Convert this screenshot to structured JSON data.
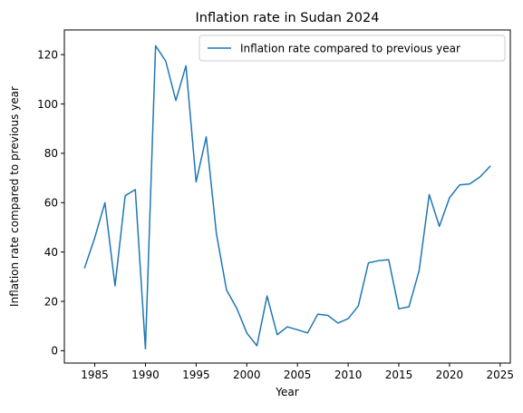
{
  "chart_data": {
    "type": "line",
    "title": "Inflation rate in Sudan 2024",
    "xlabel": "Year",
    "ylabel": "Inflation rate compared to previous year",
    "xlim": [
      1982.0,
      2026.0
    ],
    "ylim": [
      -5,
      130
    ],
    "xticks": [
      1985,
      1990,
      1995,
      2000,
      2005,
      2010,
      2015,
      2020,
      2025
    ],
    "yticks": [
      0,
      20,
      40,
      60,
      80,
      100,
      120
    ],
    "grid": false,
    "legend": "top-right",
    "color": "#1f77b4",
    "series": [
      {
        "name": "Inflation rate compared to previous year",
        "x": [
          1984,
          1985,
          1986,
          1987,
          1988,
          1989,
          1990,
          1991,
          1992,
          1993,
          1994,
          1995,
          1996,
          1997,
          1998,
          1999,
          2000,
          2001,
          2002,
          2003,
          2004,
          2005,
          2006,
          2007,
          2008,
          2009,
          2010,
          2011,
          2012,
          2013,
          2014,
          2015,
          2016,
          2017,
          2018,
          2019,
          2020,
          2021,
          2022,
          2023,
          2024
        ],
        "y": [
          33.6,
          45.8,
          60.0,
          26.3,
          62.8,
          65.3,
          0.8,
          123.6,
          117.4,
          101.4,
          115.5,
          68.4,
          86.7,
          47.5,
          24.6,
          17.3,
          7.2,
          2.0,
          22.2,
          6.5,
          9.7,
          8.5,
          7.2,
          14.8,
          14.3,
          11.2,
          13.0,
          18.1,
          35.6,
          36.5,
          36.9,
          17.0,
          17.8,
          32.4,
          63.3,
          50.4,
          62.0,
          67.2,
          67.6,
          70.4,
          74.7
        ]
      }
    ]
  }
}
